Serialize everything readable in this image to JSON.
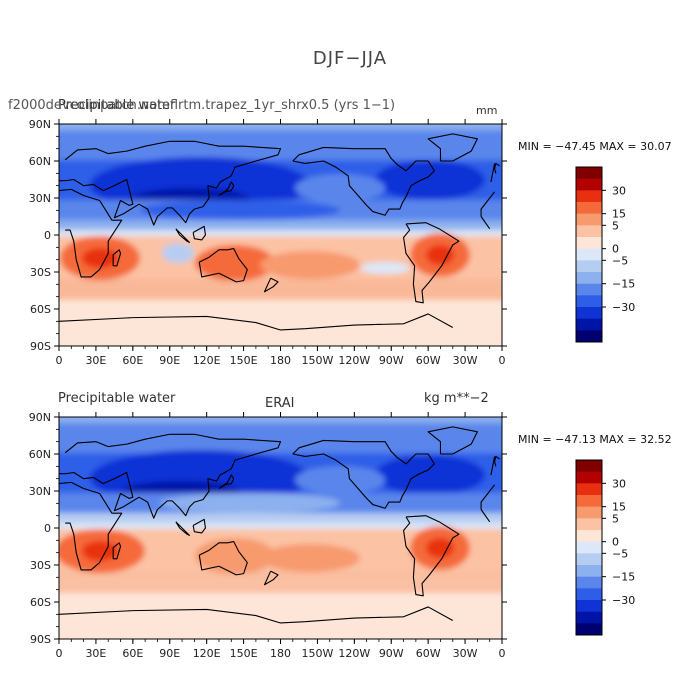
{
  "page": {
    "title": "DJF−JJA"
  },
  "panels": [
    {
      "id": "model",
      "left_title": "Precipitable water",
      "center_title": "f2000devcolinpatch.nomflrtm.trapez_1yr_shrx0.5 (yrs 1−1)",
      "units": "mm",
      "stats": "MIN = −47.45  MAX =   30.07",
      "min": -47.45,
      "max": 30.07
    },
    {
      "id": "obs",
      "left_title": "Precipitable water",
      "center_title": "ERAI",
      "units": "kg m**−2",
      "stats": "MIN = −47.13  MAX =   32.52",
      "min": -47.13,
      "max": 32.52
    }
  ],
  "axes": {
    "lat_labels": [
      "90N",
      "60N",
      "30N",
      "0",
      "30S",
      "60S",
      "90S"
    ],
    "lat_values": [
      90,
      60,
      30,
      0,
      -30,
      -60,
      -90
    ],
    "lon_labels": [
      "0",
      "30E",
      "60E",
      "90E",
      "120E",
      "150E",
      "180",
      "150W",
      "120W",
      "90W",
      "60W",
      "30W",
      "0"
    ],
    "lon_values": [
      0,
      30,
      60,
      90,
      120,
      150,
      180,
      210,
      240,
      270,
      300,
      330,
      360
    ]
  },
  "colorbar": {
    "labels": [
      "30",
      "15",
      "5",
      "0",
      "−5",
      "−15",
      "−30"
    ],
    "colors": [
      "#800000",
      "#b30000",
      "#e83010",
      "#f56a3a",
      "#f79a6e",
      "#fbc2a4",
      "#fde6d8",
      "#dce8f8",
      "#b6cdf2",
      "#8db0ee",
      "#5a86ec",
      "#2e5ee8",
      "#1033d6",
      "#0015a8",
      "#000070"
    ]
  },
  "chart_data": [
    {
      "type": "heatmap",
      "title": "DJF−JJA",
      "subtitle": "f2000devcolinpatch.nomflrtm.trapez_1yr_shrx0.5 (yrs 1−1)",
      "variable": "Precipitable water",
      "units": "mm",
      "x_ticks": [
        "0",
        "30E",
        "60E",
        "90E",
        "120E",
        "150E",
        "180",
        "150W",
        "120W",
        "90W",
        "60W",
        "30W",
        "0"
      ],
      "y_ticks": [
        "90N",
        "60N",
        "30N",
        "0",
        "30S",
        "60S",
        "90S"
      ],
      "xlim": [
        0,
        360
      ],
      "ylim": [
        -90,
        90
      ],
      "min": -47.45,
      "max": 30.07,
      "colorbar_levels": [
        -30,
        -15,
        -5,
        0,
        5,
        15,
        30
      ],
      "pattern": "northern hemisphere negative (blue), southern hemisphere positive (red)"
    },
    {
      "type": "heatmap",
      "title": "DJF−JJA",
      "subtitle": "ERAI",
      "variable": "Precipitable water",
      "units": "kg m**−2",
      "x_ticks": [
        "0",
        "30E",
        "60E",
        "90E",
        "120E",
        "150E",
        "180",
        "150W",
        "120W",
        "90W",
        "60W",
        "30W",
        "0"
      ],
      "y_ticks": [
        "90N",
        "60N",
        "30N",
        "0",
        "30S",
        "60S",
        "90S"
      ],
      "xlim": [
        0,
        360
      ],
      "ylim": [
        -90,
        90
      ],
      "min": -47.13,
      "max": 32.52,
      "colorbar_levels": [
        -30,
        -15,
        -5,
        0,
        5,
        15,
        30
      ],
      "pattern": "northern hemisphere negative (blue), southern hemisphere positive (red)"
    }
  ]
}
